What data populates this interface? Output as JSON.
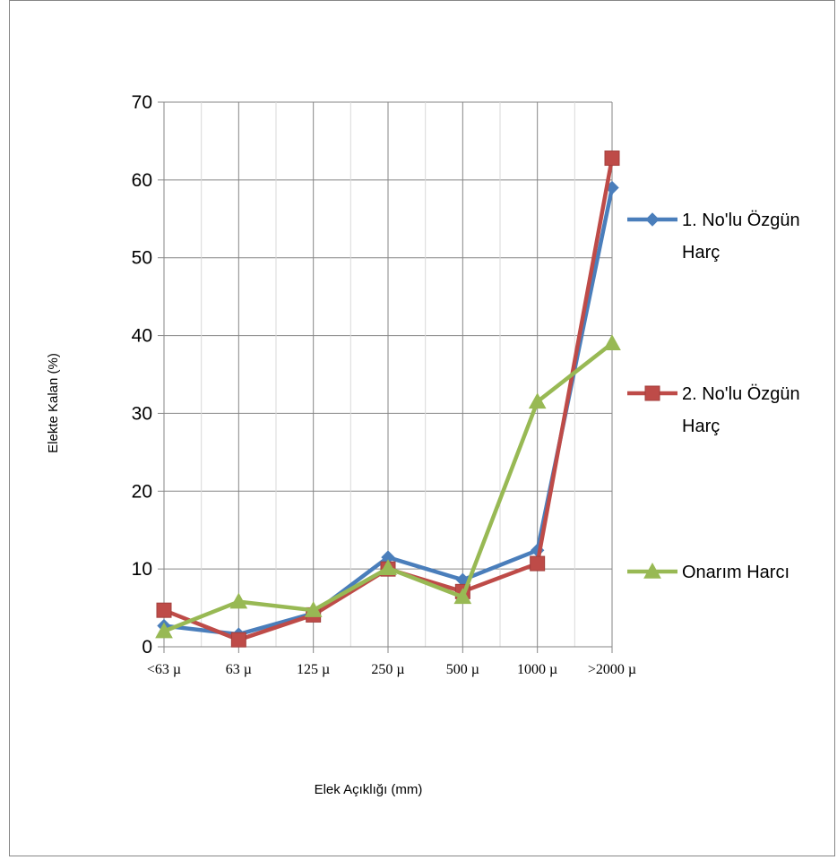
{
  "chart_data": {
    "type": "line",
    "title": "",
    "xlabel": "Elek Açıklığı (mm)",
    "ylabel": "Elekte Kalan (%)",
    "categories": [
      "<63 µ",
      "63 µ",
      "125 µ",
      "250 µ",
      "500 µ",
      "1000 µ",
      ">2000 µ"
    ],
    "ylim": [
      0,
      70
    ],
    "yticks": [
      0,
      10,
      20,
      30,
      40,
      50,
      60,
      70
    ],
    "grid": true,
    "legend_position": "right",
    "series": [
      {
        "name_lines": [
          "1. No'lu  Özgün",
          "Harç"
        ],
        "color": "#4A7EBB",
        "marker": "diamond",
        "values": [
          2.7,
          1.6,
          4.3,
          11.5,
          8.6,
          12.4,
          59.0
        ]
      },
      {
        "name_lines": [
          "2. No'lu  Özgün",
          "Harç"
        ],
        "color": "#BE4B48",
        "marker": "square",
        "values": [
          4.7,
          0.9,
          4.1,
          10.0,
          7.1,
          10.7,
          62.8
        ]
      },
      {
        "name_lines": [
          "Onarım Harcı"
        ],
        "color": "#98B954",
        "marker": "triangle",
        "values": [
          2.0,
          5.8,
          4.7,
          10.1,
          6.4,
          31.5,
          39.0
        ]
      }
    ]
  }
}
